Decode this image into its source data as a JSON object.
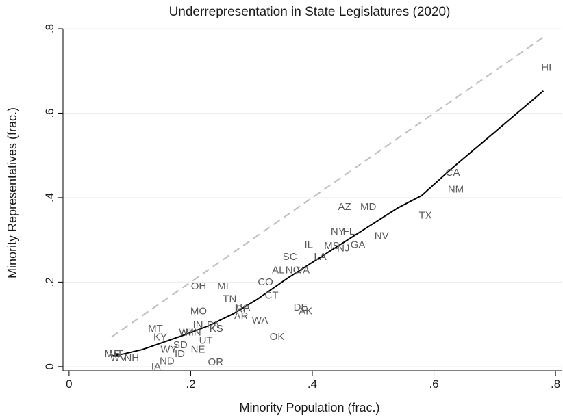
{
  "chart_data": {
    "type": "scatter",
    "title": "Underrepresentation in State Legislatures (2020)",
    "xlabel": "Minority Population (frac.)",
    "ylabel": "Minority Representatives (frac.)",
    "xlim": [
      -0.01,
      0.81
    ],
    "ylim": [
      -0.01,
      0.8
    ],
    "x_ticks": [
      0,
      0.2,
      0.4,
      0.6,
      0.8
    ],
    "x_tick_labels": [
      "0",
      ".2",
      ".4",
      ".6",
      ".8"
    ],
    "y_ticks": [
      0,
      0.2,
      0.4,
      0.6,
      0.8
    ],
    "y_tick_labels": [
      "0",
      ".2",
      ".4",
      ".6",
      ".8"
    ],
    "grid": "horizontal",
    "colors": {
      "labels": "#5a5a5a",
      "fit_line": "#000000",
      "equality_line": "#bdbdbd",
      "grid": "#ececec",
      "axis": "#000000"
    },
    "points": [
      {
        "label": "HI",
        "x": 0.785,
        "y": 0.708
      },
      {
        "label": "CA",
        "x": 0.631,
        "y": 0.459
      },
      {
        "label": "NM",
        "x": 0.636,
        "y": 0.419
      },
      {
        "label": "TX",
        "x": 0.586,
        "y": 0.358
      },
      {
        "label": "AZ",
        "x": 0.453,
        "y": 0.378
      },
      {
        "label": "MD",
        "x": 0.492,
        "y": 0.378
      },
      {
        "label": "NV",
        "x": 0.514,
        "y": 0.309
      },
      {
        "label": "NY",
        "x": 0.442,
        "y": 0.32
      },
      {
        "label": "FL",
        "x": 0.46,
        "y": 0.32
      },
      {
        "label": "MS",
        "x": 0.432,
        "y": 0.286
      },
      {
        "label": "GA",
        "x": 0.475,
        "y": 0.288
      },
      {
        "label": "NJ",
        "x": 0.451,
        "y": 0.28
      },
      {
        "label": "IL",
        "x": 0.394,
        "y": 0.288
      },
      {
        "label": "LA",
        "x": 0.413,
        "y": 0.26
      },
      {
        "label": "SC",
        "x": 0.363,
        "y": 0.26
      },
      {
        "label": "AL",
        "x": 0.344,
        "y": 0.228
      },
      {
        "label": "NC",
        "x": 0.368,
        "y": 0.228
      },
      {
        "label": "VA",
        "x": 0.385,
        "y": 0.228
      },
      {
        "label": "CO",
        "x": 0.323,
        "y": 0.2
      },
      {
        "label": "CT",
        "x": 0.333,
        "y": 0.168
      },
      {
        "label": "DE",
        "x": 0.381,
        "y": 0.14
      },
      {
        "label": "AK",
        "x": 0.389,
        "y": 0.131
      },
      {
        "label": "OH",
        "x": 0.213,
        "y": 0.19
      },
      {
        "label": "MI",
        "x": 0.253,
        "y": 0.19
      },
      {
        "label": "TN",
        "x": 0.264,
        "y": 0.16
      },
      {
        "label": "MA",
        "x": 0.285,
        "y": 0.14
      },
      {
        "label": "RI",
        "x": 0.282,
        "y": 0.136
      },
      {
        "label": "AR",
        "x": 0.283,
        "y": 0.119
      },
      {
        "label": "WA",
        "x": 0.314,
        "y": 0.109
      },
      {
        "label": "MO",
        "x": 0.213,
        "y": 0.131
      },
      {
        "label": "IN",
        "x": 0.212,
        "y": 0.098
      },
      {
        "label": "PA",
        "x": 0.237,
        "y": 0.098
      },
      {
        "label": "KS",
        "x": 0.242,
        "y": 0.09
      },
      {
        "label": "WI",
        "x": 0.191,
        "y": 0.081
      },
      {
        "label": "MN",
        "x": 0.204,
        "y": 0.081
      },
      {
        "label": "MT",
        "x": 0.142,
        "y": 0.09
      },
      {
        "label": "KY",
        "x": 0.15,
        "y": 0.069
      },
      {
        "label": "UT",
        "x": 0.225,
        "y": 0.061
      },
      {
        "label": "SD",
        "x": 0.183,
        "y": 0.051
      },
      {
        "label": "WY",
        "x": 0.164,
        "y": 0.04
      },
      {
        "label": "NE",
        "x": 0.212,
        "y": 0.04
      },
      {
        "label": "ID",
        "x": 0.182,
        "y": 0.03
      },
      {
        "label": "OK",
        "x": 0.342,
        "y": 0.07
      },
      {
        "label": "ND",
        "x": 0.161,
        "y": 0.013
      },
      {
        "label": "IA",
        "x": 0.143,
        "y": 0.0
      },
      {
        "label": "OR",
        "x": 0.241,
        "y": 0.01
      },
      {
        "label": "ME",
        "x": 0.071,
        "y": 0.03
      },
      {
        "label": "VT",
        "x": 0.078,
        "y": 0.03
      },
      {
        "label": "WV",
        "x": 0.081,
        "y": 0.02
      },
      {
        "label": "NH",
        "x": 0.103,
        "y": 0.02
      }
    ],
    "fit_line": {
      "x": [
        0.07,
        0.09,
        0.12,
        0.15,
        0.19,
        0.23,
        0.27,
        0.31,
        0.36,
        0.42,
        0.48,
        0.54,
        0.58,
        0.63,
        0.7,
        0.78
      ],
      "y": [
        0.025,
        0.03,
        0.04,
        0.055,
        0.075,
        0.097,
        0.125,
        0.16,
        0.21,
        0.265,
        0.32,
        0.375,
        0.405,
        0.47,
        0.555,
        0.653
      ]
    },
    "equality_line": {
      "x": [
        0.07,
        0.78
      ],
      "y": [
        0.07,
        0.78
      ]
    }
  }
}
